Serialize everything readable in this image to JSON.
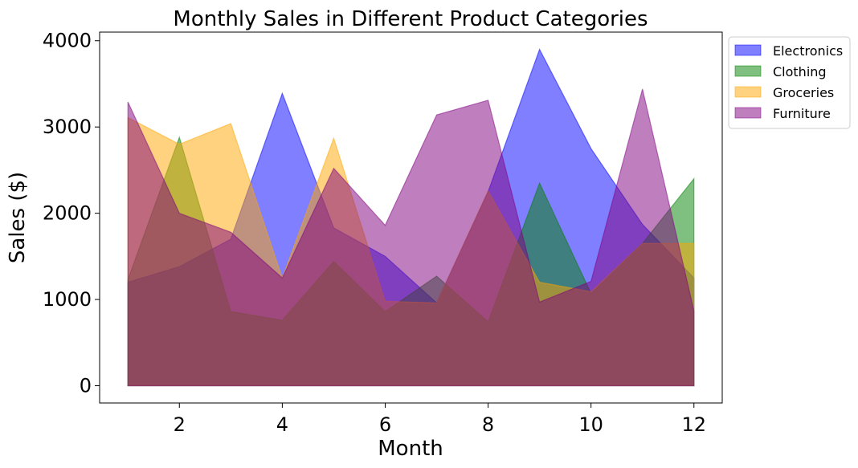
{
  "chart_data": {
    "type": "area",
    "title": "Monthly Sales in Different Product Categories",
    "xlabel": "Month",
    "ylabel": "Sales ($)",
    "x": [
      1,
      2,
      3,
      4,
      5,
      6,
      7,
      8,
      9,
      10,
      11,
      12
    ],
    "xlim": [
      0.45,
      12.55
    ],
    "ylim": [
      -200,
      4100
    ],
    "xticks": [
      2,
      4,
      6,
      8,
      10,
      12
    ],
    "yticks": [
      0,
      1000,
      2000,
      3000,
      4000
    ],
    "legend_position": "upper right outside",
    "stacked": false,
    "series": [
      {
        "name": "Electronics",
        "color": "#0000ff",
        "alpha": 0.5,
        "values": [
          1200,
          1380,
          1700,
          3390,
          1830,
          1500,
          960,
          2250,
          3900,
          2750,
          1870,
          1250
        ]
      },
      {
        "name": "Clothing",
        "color": "#008000",
        "alpha": 0.5,
        "values": [
          1230,
          2880,
          860,
          760,
          1440,
          860,
          1270,
          740,
          2350,
          1070,
          1650,
          2400
        ]
      },
      {
        "name": "Groceries",
        "color": "#ffa500",
        "alpha": 0.5,
        "values": [
          3110,
          2800,
          3040,
          1250,
          2870,
          980,
          960,
          2260,
          1200,
          1090,
          1650,
          1650
        ]
      },
      {
        "name": "Furniture",
        "color": "#800080",
        "alpha": 0.5,
        "values": [
          3290,
          2000,
          1780,
          1250,
          2520,
          1860,
          3140,
          3310,
          970,
          1210,
          3440,
          870
        ]
      }
    ]
  }
}
